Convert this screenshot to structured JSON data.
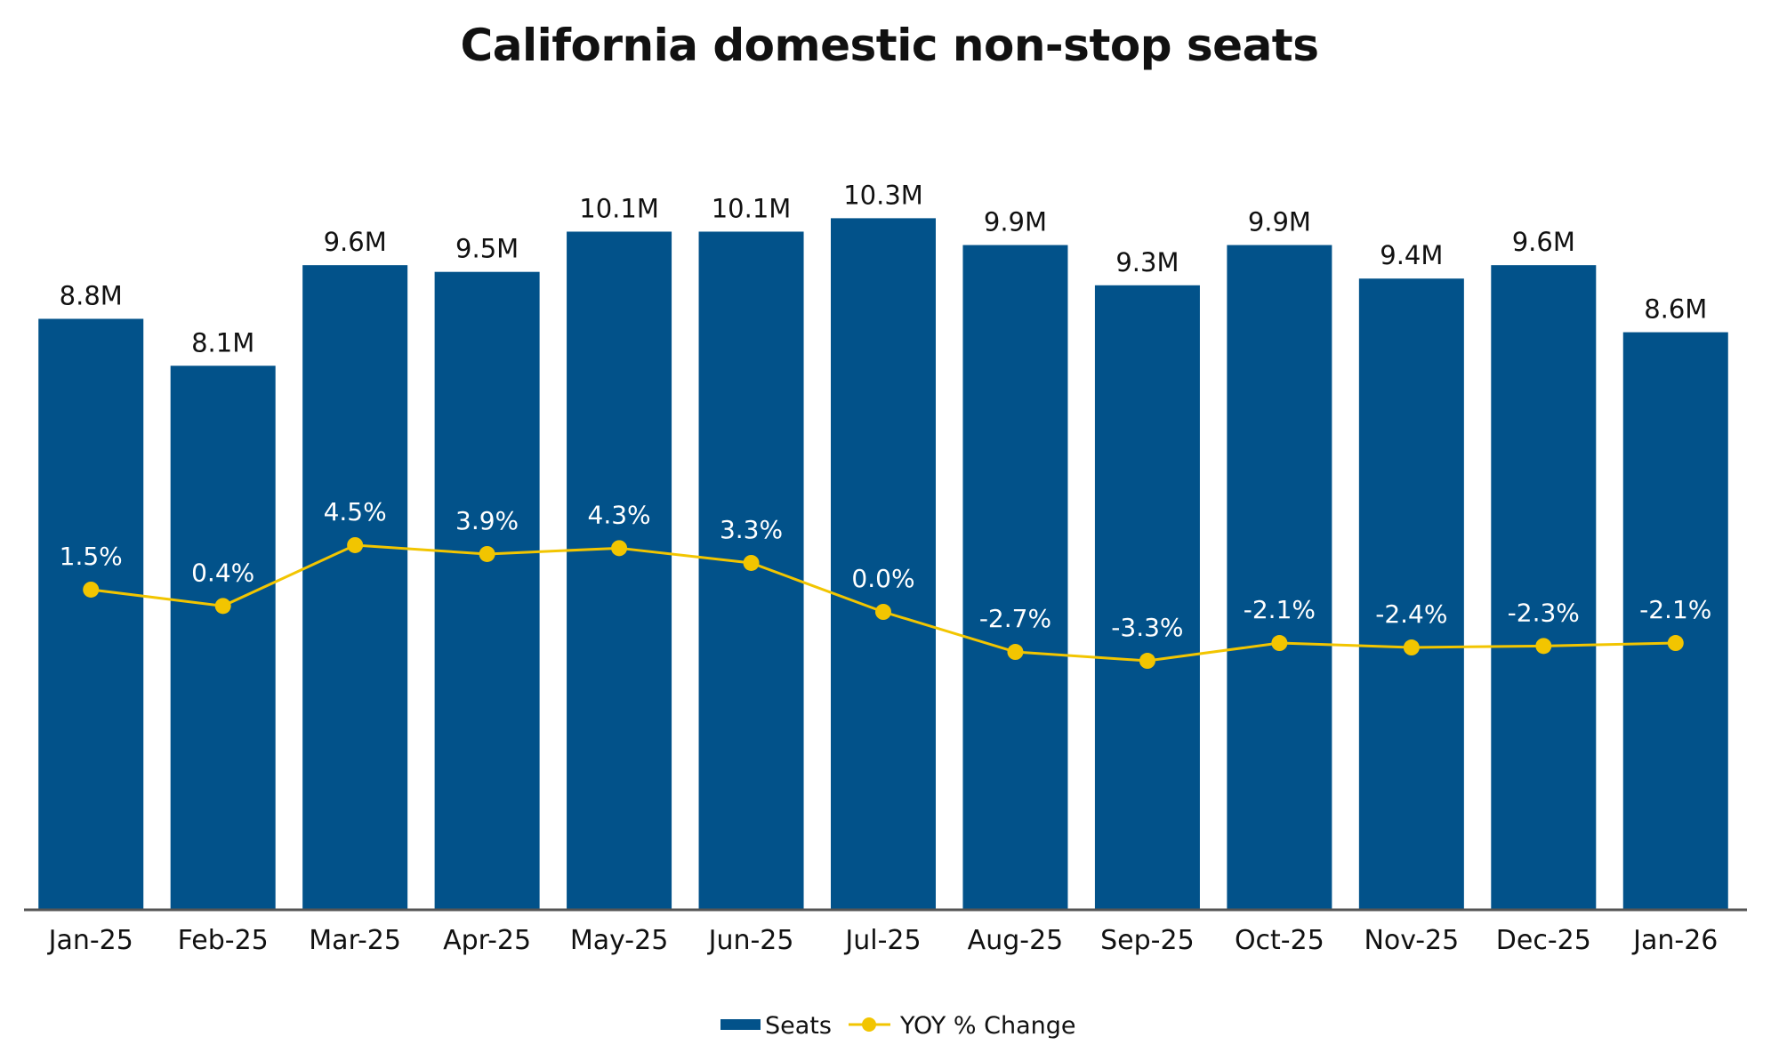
{
  "chart_data": {
    "type": "bar",
    "title": "California domestic non-stop seats",
    "xlabel": "",
    "ylabel": "",
    "categories": [
      "Jan-25",
      "Feb-25",
      "Mar-25",
      "Apr-25",
      "May-25",
      "Jun-25",
      "Jul-25",
      "Aug-25",
      "Sep-25",
      "Oct-25",
      "Nov-25",
      "Dec-25",
      "Jan-26"
    ],
    "series": [
      {
        "name": "Seats",
        "type": "bar",
        "color": "#02528A",
        "unit": "millions",
        "values": [
          8.8,
          8.1,
          9.6,
          9.5,
          10.1,
          10.1,
          10.3,
          9.9,
          9.3,
          9.9,
          9.4,
          9.6,
          8.6
        ],
        "labels": [
          "8.8M",
          "8.1M",
          "9.6M",
          "9.5M",
          "10.1M",
          "10.1M",
          "10.3M",
          "9.9M",
          "9.3M",
          "9.9M",
          "9.4M",
          "9.6M",
          "8.6M"
        ]
      },
      {
        "name": "YOY % Change",
        "type": "line",
        "color": "#F2C500",
        "unit": "percent",
        "values": [
          1.5,
          0.4,
          4.5,
          3.9,
          4.3,
          3.3,
          0.0,
          -2.7,
          -3.3,
          -2.1,
          -2.4,
          -2.3,
          -2.1
        ],
        "labels": [
          "1.5%",
          "0.4%",
          "4.5%",
          "3.9%",
          "4.3%",
          "3.3%",
          "0.0%",
          "-2.7%",
          "-3.3%",
          "-2.1%",
          "-2.4%",
          "-2.3%",
          "-2.1%"
        ]
      }
    ],
    "ylim_seats": [
      0,
      12
    ],
    "ylim_yoy": [
      -20,
      8
    ],
    "grid": false,
    "y_axis_visible": false,
    "legend": {
      "position": "bottom-center",
      "entries": [
        {
          "label": "Seats",
          "marker": "bar",
          "color": "#02528A"
        },
        {
          "label": "YOY % Change",
          "marker": "line-dot",
          "color": "#F2C500"
        }
      ]
    },
    "colors": {
      "bar": "#02528A",
      "line": "#F2C500",
      "axis": "#555555",
      "text": "#111111",
      "line_label": "#ffffff"
    }
  }
}
